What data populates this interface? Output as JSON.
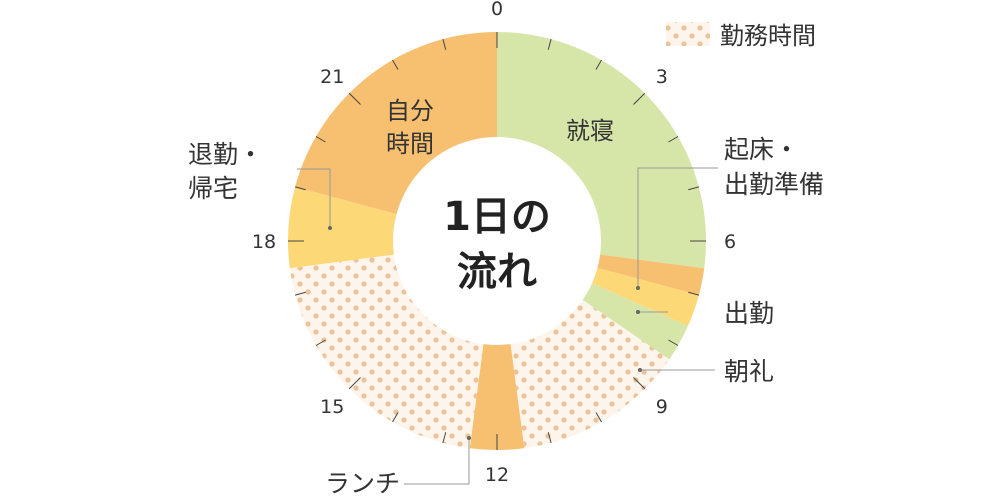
{
  "chart_data": {
    "type": "pie",
    "title": "1日の流れ",
    "title_lines": [
      "1日の",
      "流れ"
    ],
    "unit": "hours",
    "ticks": [
      "0",
      "3",
      "6",
      "9",
      "12",
      "15",
      "18",
      "21"
    ],
    "legend": {
      "label": "勤務時間",
      "pattern": "dotted"
    },
    "segments": [
      {
        "label": "就寝",
        "start": 0,
        "end": 6.5,
        "color": "#d6e6a8"
      },
      {
        "label": "起床・出勤準備",
        "start": 6.5,
        "end": 7.0,
        "color": "#f7c071"
      },
      {
        "label": "出勤",
        "start": 7.0,
        "end": 7.6,
        "color": "#fcd877"
      },
      {
        "label": "朝礼",
        "start": 7.6,
        "end": 8.3,
        "color": "#d6e6a8"
      },
      {
        "label": "勤務時間",
        "start": 8.3,
        "end": 11.5,
        "color": "#fdf5ec",
        "pattern": "dotted"
      },
      {
        "label": "ランチ",
        "start": 11.5,
        "end": 12.5,
        "color": "#f7c071"
      },
      {
        "label": "勤務時間",
        "start": 12.5,
        "end": 17.5,
        "color": "#fdf5ec",
        "pattern": "dotted"
      },
      {
        "label": "退勤・帰宅",
        "start": 17.5,
        "end": 19.0,
        "color": "#fcd877"
      },
      {
        "label": "自分時間",
        "start": 19.0,
        "end": 24.0,
        "color": "#f7c071"
      }
    ],
    "inner_labels": [
      {
        "lines": [
          "就寝"
        ]
      },
      {
        "lines": [
          "自分",
          "時間"
        ]
      }
    ],
    "outer_labels": [
      {
        "lines": [
          "起床・",
          "出勤準備"
        ]
      },
      {
        "lines": [
          "出勤"
        ]
      },
      {
        "lines": [
          "朝礼"
        ]
      },
      {
        "lines": [
          "ランチ"
        ]
      },
      {
        "lines": [
          "退勤・",
          "帰宅"
        ]
      }
    ],
    "colors": {
      "dot": "#ecc398",
      "line": "#999999",
      "text": "#333333"
    }
  }
}
